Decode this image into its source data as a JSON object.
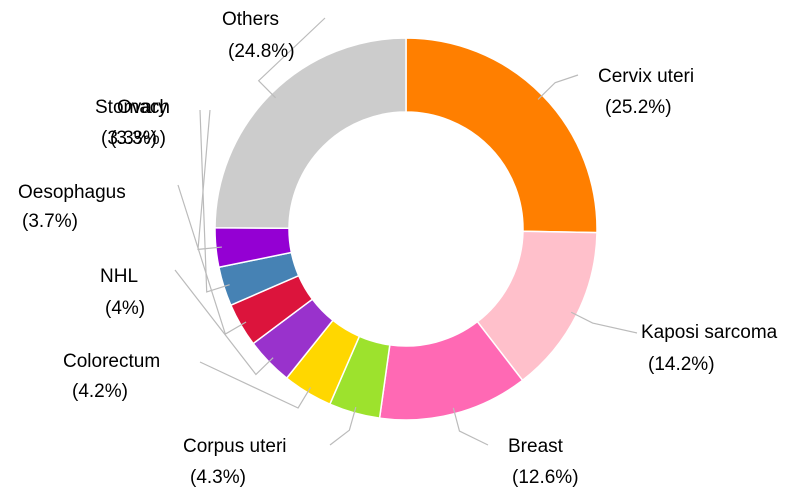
{
  "chart_data": {
    "type": "donut",
    "categories": [
      "Cervix uteri",
      "Kaposi sarcoma",
      "Breast",
      "Corpus uteri",
      "Colorectum",
      "NHL",
      "Oesophagus",
      "Stomach",
      "Ovary",
      "Others"
    ],
    "values": [
      25.2,
      14.2,
      12.6,
      4.3,
      4.2,
      4,
      3.7,
      3.3,
      3.3,
      24.8
    ],
    "value_labels": [
      "(25.2%)",
      "(14.2%)",
      "(12.6%)",
      "(4.3%)",
      "(4.2%)",
      "(4%)",
      "(3.7%)",
      "(3.3%)",
      "(3.3%)",
      "(24.8%)"
    ],
    "colors": [
      "#ff7f00",
      "#ffc0cb",
      "#ff69b4",
      "#9de22d",
      "#ffd700",
      "#9932cc",
      "#dc143c",
      "#4682b4",
      "#9400d3",
      "#cccccc"
    ]
  }
}
